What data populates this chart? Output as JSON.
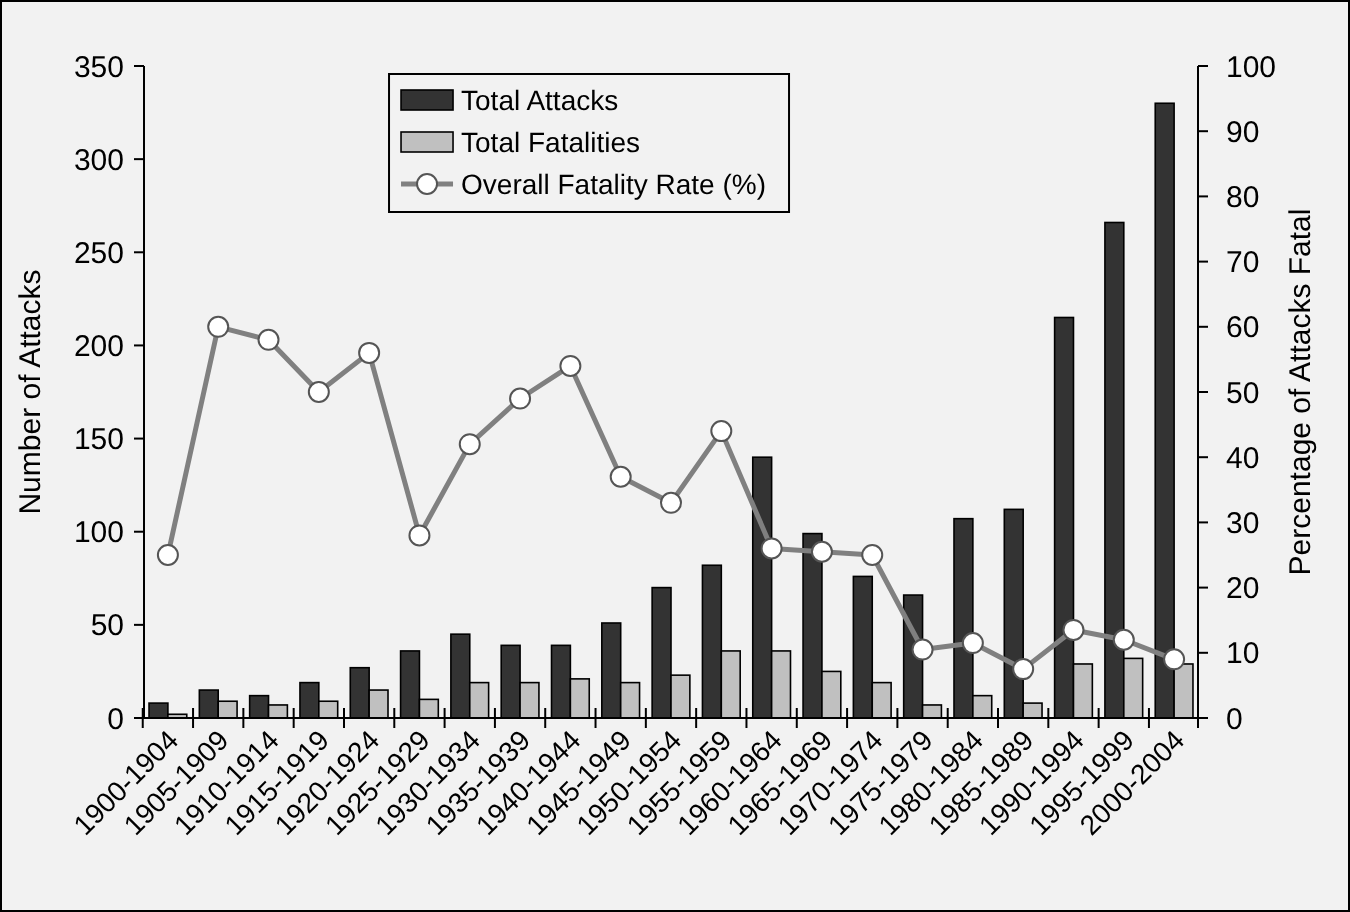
{
  "chart_data": {
    "type": "bar",
    "xlabel": null,
    "ylabel": "Number of Attacks",
    "y2label": "Percentage of Attacks Fatal",
    "categories": [
      "1900-1904",
      "1905-1909",
      "1910-1914",
      "1915-1919",
      "1920-1924",
      "1925-1929",
      "1930-1934",
      "1935-1939",
      "1940-1944",
      "1945-1949",
      "1950-1954",
      "1955-1959",
      "1960-1964",
      "1965-1969",
      "1970-1974",
      "1975-1979",
      "1980-1984",
      "1985-1989",
      "1990-1994",
      "1995-1999",
      "2000-2004"
    ],
    "series": [
      {
        "name": "Total Attacks",
        "color": "#333333",
        "values": [
          8,
          15,
          12,
          19,
          27,
          36,
          45,
          39,
          39,
          51,
          70,
          82,
          140,
          99,
          76,
          66,
          107,
          112,
          215,
          266,
          330
        ]
      },
      {
        "name": "Total Fatalities",
        "color": "#c0c0c0",
        "values": [
          2,
          9,
          7,
          9,
          15,
          10,
          19,
          19,
          21,
          19,
          23,
          36,
          36,
          25,
          19,
          7,
          12,
          8,
          29,
          32,
          29
        ]
      },
      {
        "name": "Overall Fatality Rate (%)",
        "type": "line",
        "axis": "y2",
        "color": "#808080",
        "marker": "circle",
        "values": [
          25,
          60,
          58,
          50,
          56,
          28,
          42,
          49,
          54,
          37,
          33,
          44,
          26,
          25.5,
          25,
          10.5,
          11.5,
          7.5,
          13.5,
          12,
          9
        ]
      }
    ],
    "ylim": [
      0,
      350
    ],
    "yticks": [
      0,
      50,
      100,
      150,
      200,
      250,
      300,
      350
    ],
    "y2lim": [
      0,
      100
    ],
    "y2ticks": [
      0,
      10,
      20,
      30,
      40,
      50,
      60,
      70,
      80,
      90,
      100
    ],
    "grid": false,
    "legend": "top left"
  }
}
